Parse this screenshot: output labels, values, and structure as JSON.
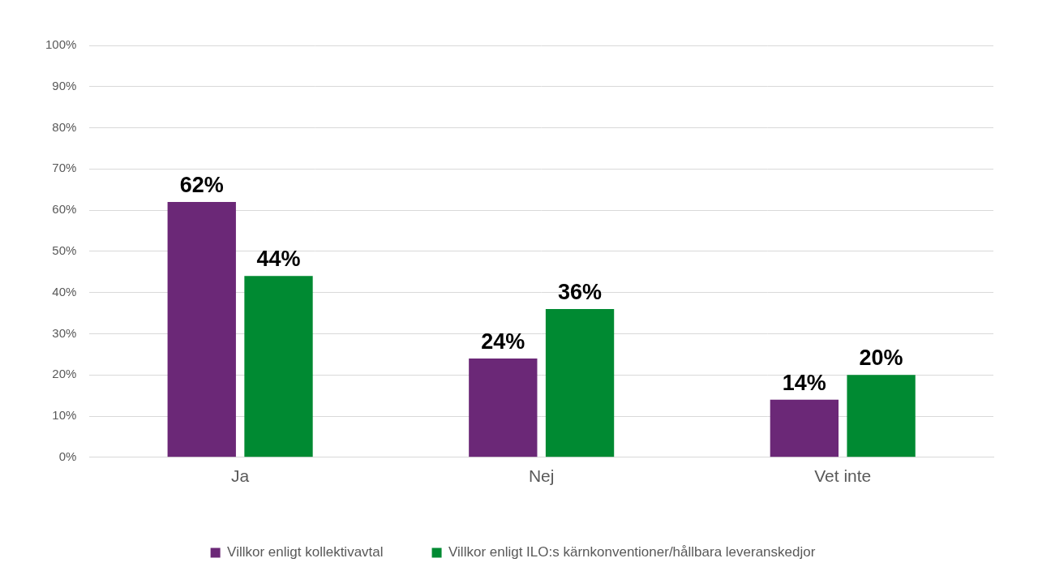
{
  "chart_data": {
    "type": "bar",
    "categories": [
      "Ja",
      "Nej",
      "Vet inte"
    ],
    "series": [
      {
        "name": "Villkor enligt kollektivavtal",
        "color": "#6b2877",
        "values": [
          62,
          24,
          14
        ],
        "value_labels": [
          "62%",
          "24%",
          "14%"
        ]
      },
      {
        "name": "Villkor enligt ILO:s kärnkonventioner/hållbara leveranskedjor",
        "color": "#008a32",
        "values": [
          44,
          36,
          20
        ],
        "value_labels": [
          "44%",
          "36%",
          "20%"
        ]
      }
    ],
    "ylim": [
      0,
      100
    ],
    "yticks": [
      {
        "value": 0,
        "label": "0%"
      },
      {
        "value": 10,
        "label": "10%"
      },
      {
        "value": 20,
        "label": "20%"
      },
      {
        "value": 30,
        "label": "30%"
      },
      {
        "value": 40,
        "label": "40%"
      },
      {
        "value": 50,
        "label": "50%"
      },
      {
        "value": 60,
        "label": "60%"
      },
      {
        "value": 70,
        "label": "70%"
      },
      {
        "value": 80,
        "label": "80%"
      },
      {
        "value": 90,
        "label": "90%"
      },
      {
        "value": 100,
        "label": "100%"
      }
    ],
    "grid": true,
    "legend": "bottom",
    "data_labels": true
  }
}
